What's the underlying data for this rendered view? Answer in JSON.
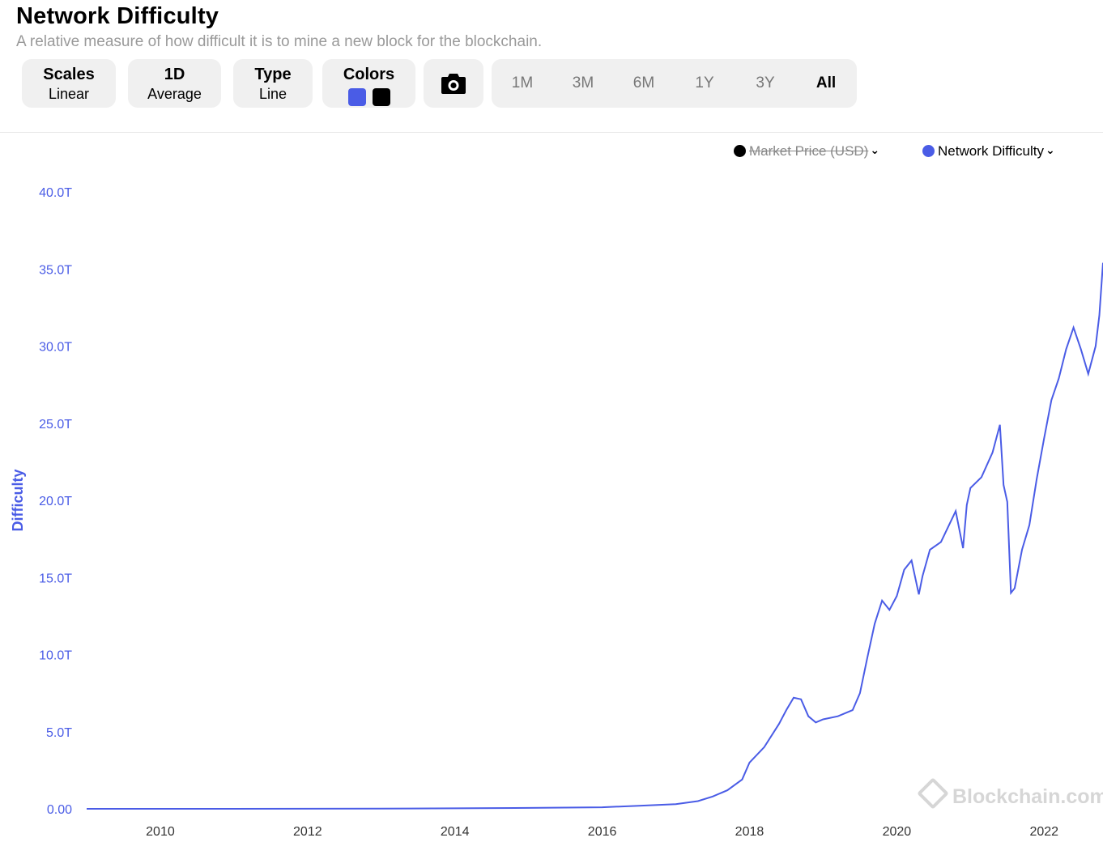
{
  "header": {
    "title": "Network Difficulty",
    "subtitle": "A relative measure of how difficult it is to mine a new block for the blockchain."
  },
  "toolbar": {
    "scales": {
      "label": "Scales",
      "value": "Linear"
    },
    "average": {
      "label": "1D",
      "value": "Average"
    },
    "type": {
      "label": "Type",
      "value": "Line"
    },
    "colors": {
      "label": "Colors",
      "swatch1": "#4a5ce6",
      "swatch2": "#000000"
    },
    "screenshot_icon": "camera-icon",
    "ranges": [
      "1M",
      "3M",
      "6M",
      "1Y",
      "3Y",
      "All"
    ],
    "active_range": "All"
  },
  "legend": [
    {
      "label": "Market Price (USD)",
      "color": "#000000",
      "enabled": false
    },
    {
      "label": "Network Difficulty",
      "color": "#4a5ce6",
      "enabled": true
    }
  ],
  "watermark": "Blockchain.com",
  "chart_data": {
    "type": "line",
    "title": "Network Difficulty",
    "ylabel": "Difficulty",
    "xlabel": "",
    "ylim": [
      0,
      40
    ],
    "yunit": "T",
    "yticks": [
      "0.00",
      "5.0T",
      "10.0T",
      "15.0T",
      "20.0T",
      "25.0T",
      "30.0T",
      "35.0T",
      "40.0T"
    ],
    "xticks": [
      "2010",
      "2012",
      "2014",
      "2016",
      "2018",
      "2020",
      "2022"
    ],
    "xlim": [
      2009.0,
      2022.8
    ],
    "grid": false,
    "legend_position": "top-right",
    "series": [
      {
        "name": "Network Difficulty",
        "color": "#4a5ce6",
        "x": [
          2009.0,
          2011.0,
          2013.0,
          2014.0,
          2015.0,
          2015.5,
          2016.0,
          2016.5,
          2017.0,
          2017.3,
          2017.5,
          2017.7,
          2017.9,
          2018.0,
          2018.2,
          2018.4,
          2018.5,
          2018.6,
          2018.7,
          2018.8,
          2018.9,
          2019.0,
          2019.2,
          2019.4,
          2019.5,
          2019.6,
          2019.7,
          2019.8,
          2019.9,
          2020.0,
          2020.1,
          2020.2,
          2020.3,
          2020.35,
          2020.45,
          2020.6,
          2020.8,
          2020.9,
          2020.95,
          2021.0,
          2021.15,
          2021.3,
          2021.4,
          2021.45,
          2021.5,
          2021.55,
          2021.6,
          2021.7,
          2021.8,
          2021.9,
          2022.0,
          2022.1,
          2022.2,
          2022.3,
          2022.4,
          2022.5,
          2022.6,
          2022.7,
          2022.75,
          2022.8
        ],
        "values": [
          0.0,
          0.0,
          0.01,
          0.03,
          0.06,
          0.08,
          0.1,
          0.2,
          0.3,
          0.5,
          0.8,
          1.2,
          1.9,
          3.0,
          4.0,
          5.5,
          6.4,
          7.2,
          7.1,
          6.0,
          5.6,
          5.8,
          6.0,
          6.4,
          7.5,
          9.8,
          12.0,
          13.5,
          12.9,
          13.8,
          15.5,
          16.1,
          13.9,
          15.1,
          16.8,
          17.3,
          19.3,
          16.9,
          19.7,
          20.8,
          21.5,
          23.1,
          24.9,
          21.0,
          19.9,
          14.0,
          14.3,
          16.8,
          18.4,
          21.4,
          24.0,
          26.5,
          27.9,
          29.8,
          31.2,
          29.8,
          28.2,
          30.0,
          32.0,
          35.4
        ]
      },
      {
        "name": "Market Price (USD)",
        "color": "#000000",
        "visible": false,
        "x": [],
        "values": []
      }
    ]
  }
}
